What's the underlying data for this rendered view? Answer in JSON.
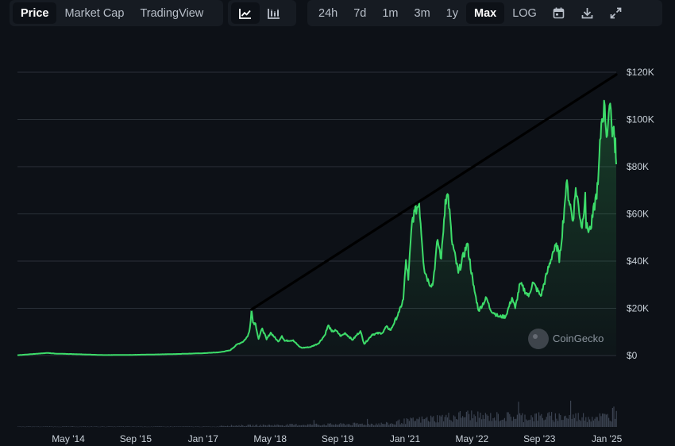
{
  "toolbar": {
    "view_tabs": [
      "Price",
      "Market Cap",
      "TradingView"
    ],
    "active_view": "Price",
    "chart_type_icons": [
      "line-chart-icon",
      "candlestick-chart-icon"
    ],
    "ranges": [
      "24h",
      "7d",
      "1m",
      "3m",
      "1y",
      "Max",
      "LOG"
    ],
    "active_range": "Max",
    "action_icons": [
      "calendar-icon",
      "download-icon",
      "expand-icon"
    ]
  },
  "watermark": "CoinGecko",
  "colors": {
    "line": "#3ddc6a",
    "background": "#0d1117",
    "grid": "#2a3038",
    "volume": "#3a4250",
    "trendline": "#000000"
  },
  "chart_data": {
    "type": "area",
    "title": "",
    "xlabel": "",
    "ylabel": "",
    "ylim": [
      0,
      120000
    ],
    "y_tick_labels": [
      "$0",
      "$20K",
      "$40K",
      "$60K",
      "$80K",
      "$100K",
      "$120K"
    ],
    "y_ticks": [
      0,
      20000,
      40000,
      60000,
      80000,
      100000,
      120000
    ],
    "x_tick_labels": [
      "May '14",
      "Sep '15",
      "Jan '17",
      "May '18",
      "Sep '19",
      "Jan '21",
      "May '22",
      "Sep '23",
      "Jan '25"
    ],
    "x_ticks": [
      "2014-05-01",
      "2015-09-01",
      "2017-01-01",
      "2018-05-01",
      "2019-09-01",
      "2021-01-01",
      "2022-05-01",
      "2023-09-01",
      "2025-01-01"
    ],
    "xlim": [
      "2013-04-28",
      "2025-03-10"
    ],
    "grid": true,
    "series": [
      {
        "values": [
          [
            "2013-04-28",
            135
          ],
          [
            "2013-11-30",
            1100
          ],
          [
            "2014-02-01",
            800
          ],
          [
            "2014-06-01",
            620
          ],
          [
            "2015-01-15",
            200
          ],
          [
            "2015-08-01",
            280
          ],
          [
            "2016-01-01",
            430
          ],
          [
            "2016-07-01",
            670
          ],
          [
            "2017-01-01",
            980
          ],
          [
            "2017-05-01",
            1400
          ],
          [
            "2017-07-15",
            2200
          ],
          [
            "2017-09-01",
            4600
          ],
          [
            "2017-10-20",
            6000
          ],
          [
            "2017-11-20",
            8200
          ],
          [
            "2017-12-05",
            11500
          ],
          [
            "2017-12-17",
            19500
          ],
          [
            "2017-12-28",
            14000
          ],
          [
            "2018-01-15",
            13500
          ],
          [
            "2018-02-06",
            7000
          ],
          [
            "2018-03-05",
            11500
          ],
          [
            "2018-04-05",
            6800
          ],
          [
            "2018-05-05",
            9700
          ],
          [
            "2018-06-28",
            5900
          ],
          [
            "2018-07-25",
            8300
          ],
          [
            "2018-08-14",
            6200
          ],
          [
            "2018-10-15",
            6500
          ],
          [
            "2018-11-25",
            3900
          ],
          [
            "2018-12-15",
            3250
          ],
          [
            "2019-02-15",
            3600
          ],
          [
            "2019-04-15",
            5100
          ],
          [
            "2019-05-30",
            8500
          ],
          [
            "2019-06-26",
            12800
          ],
          [
            "2019-07-20",
            10200
          ],
          [
            "2019-08-20",
            10600
          ],
          [
            "2019-09-25",
            8200
          ],
          [
            "2019-10-26",
            9500
          ],
          [
            "2019-12-18",
            6600
          ],
          [
            "2020-02-13",
            10400
          ],
          [
            "2020-03-12",
            4900
          ],
          [
            "2020-05-10",
            9000
          ],
          [
            "2020-07-25",
            9700
          ],
          [
            "2020-08-17",
            12200
          ],
          [
            "2020-09-20",
            10800
          ],
          [
            "2020-11-20",
            18500
          ],
          [
            "2020-12-20",
            23800
          ],
          [
            "2021-01-08",
            40500
          ],
          [
            "2021-01-25",
            32000
          ],
          [
            "2021-02-21",
            57000
          ],
          [
            "2021-03-13",
            61000
          ],
          [
            "2021-04-14",
            64500
          ],
          [
            "2021-05-19",
            37000
          ],
          [
            "2021-06-22",
            31000
          ],
          [
            "2021-07-20",
            29800
          ],
          [
            "2021-08-25",
            49000
          ],
          [
            "2021-09-21",
            41000
          ],
          [
            "2021-10-20",
            66000
          ],
          [
            "2021-11-10",
            68000
          ],
          [
            "2021-12-05",
            49000
          ],
          [
            "2022-01-22",
            35000
          ],
          [
            "2022-03-28",
            47500
          ],
          [
            "2022-05-10",
            30000
          ],
          [
            "2022-06-18",
            19000
          ],
          [
            "2022-08-14",
            24400
          ],
          [
            "2022-09-10",
            19500
          ],
          [
            "2022-11-09",
            16500
          ],
          [
            "2022-12-30",
            16500
          ],
          [
            "2023-02-15",
            24500
          ],
          [
            "2023-03-10",
            20000
          ],
          [
            "2023-04-14",
            30500
          ],
          [
            "2023-06-15",
            25000
          ],
          [
            "2023-07-14",
            31000
          ],
          [
            "2023-09-11",
            25200
          ],
          [
            "2023-10-24",
            34500
          ],
          [
            "2023-12-08",
            44000
          ],
          [
            "2024-01-11",
            46500
          ],
          [
            "2024-01-23",
            39500
          ],
          [
            "2024-02-28",
            62000
          ],
          [
            "2024-03-14",
            73000
          ],
          [
            "2024-05-01",
            57000
          ],
          [
            "2024-05-21",
            71000
          ],
          [
            "2024-07-05",
            54000
          ],
          [
            "2024-07-29",
            69000
          ],
          [
            "2024-08-05",
            54000
          ],
          [
            "2024-09-06",
            53500
          ],
          [
            "2024-10-29",
            72500
          ],
          [
            "2024-11-22",
            98500
          ],
          [
            "2024-12-17",
            106000
          ],
          [
            "2024-12-30",
            92500
          ],
          [
            "2025-01-20",
            106000
          ],
          [
            "2025-02-05",
            97000
          ],
          [
            "2025-02-20",
            97000
          ],
          [
            "2025-03-01",
            86000
          ],
          [
            "2025-03-04",
            92000
          ],
          [
            "2025-03-10",
            81000
          ]
        ]
      }
    ],
    "trendline": {
      "from": [
        "2017-12-17",
        19500
      ],
      "to": [
        "2025-03-10",
        119000
      ]
    },
    "volume_bars": true
  }
}
